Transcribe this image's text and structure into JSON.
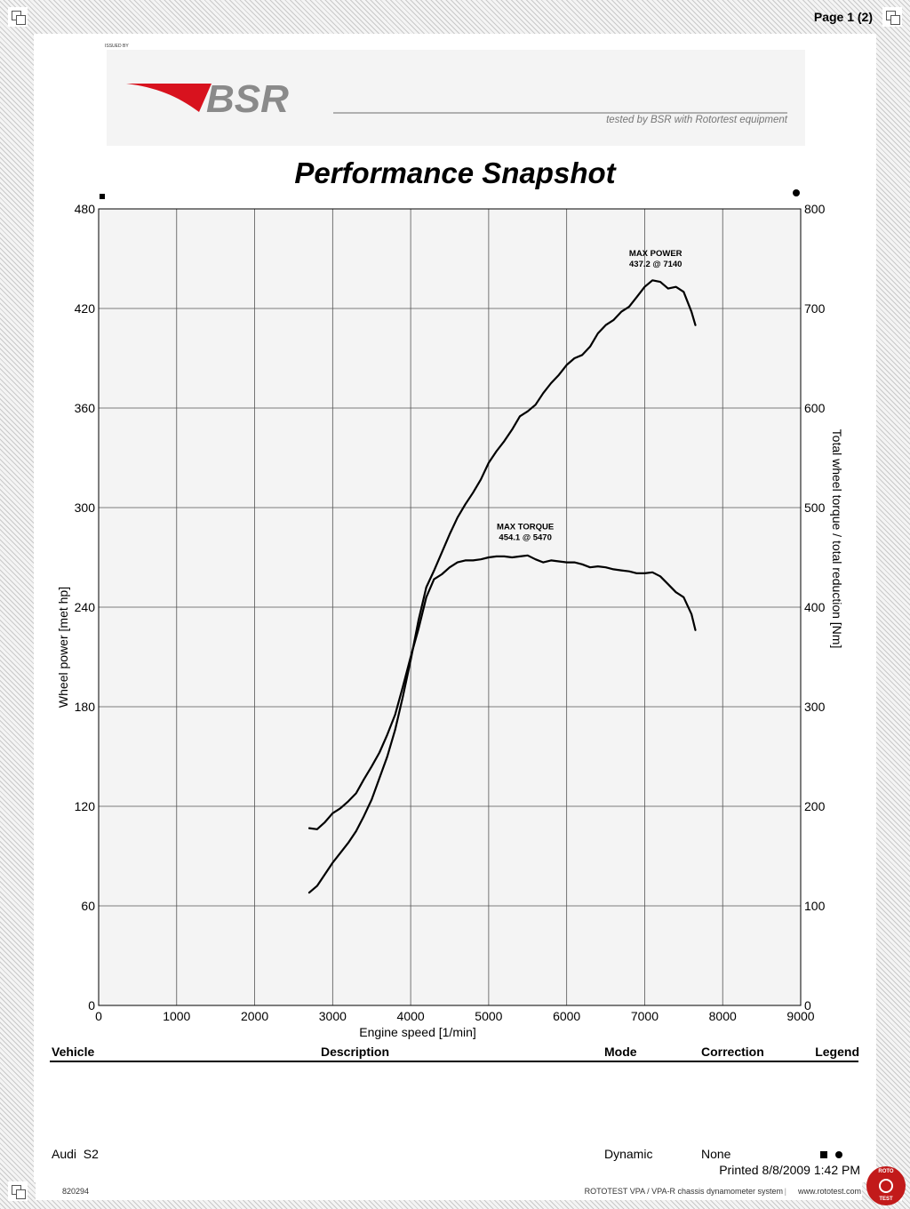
{
  "page": {
    "number": "Page 1 (2)",
    "issued_by": "ISSUED BY",
    "doc_id": "820294"
  },
  "branding": {
    "logo_text": "BSR",
    "tagline": "tested by BSR with Rotortest equipment",
    "logo_color": "#d8121e",
    "logo_gray": "#8a8a8a"
  },
  "chart_data": {
    "type": "line",
    "title": "Performance Snapshot",
    "xlabel": "Engine speed [1/min]",
    "ylabel_left": "Wheel power [met hp]",
    "ylabel_right": "Total wheel torque / total reduction [Nm]",
    "xlim": [
      0,
      9000
    ],
    "ylim_left": [
      0,
      480
    ],
    "ylim_right": [
      0,
      800
    ],
    "x_ticks": [
      "0",
      "1000",
      "2000",
      "3000",
      "4000",
      "5000",
      "6000",
      "7000",
      "8000",
      "9000"
    ],
    "y_left_ticks": [
      "0",
      "60",
      "120",
      "180",
      "240",
      "300",
      "360",
      "420",
      "480"
    ],
    "y_right_ticks": [
      "0",
      "100",
      "200",
      "300",
      "400",
      "500",
      "600",
      "700",
      "800"
    ],
    "grid": true,
    "series": [
      {
        "axis": "left",
        "color": "#000000",
        "x": [
          2700,
          2800,
          2900,
          3000,
          3100,
          3200,
          3300,
          3400,
          3500,
          3600,
          3700,
          3800,
          3900,
          4000,
          4100,
          4200,
          4300,
          4400,
          4500,
          4600,
          4700,
          4800,
          4900,
          5000,
          5100,
          5200,
          5300,
          5400,
          5500,
          5600,
          5700,
          5800,
          5900,
          6000,
          6100,
          6200,
          6300,
          6400,
          6500,
          6600,
          6700,
          6800,
          6900,
          7000,
          7100,
          7200,
          7300,
          7400,
          7500,
          7600,
          7650
        ],
        "y": [
          68,
          72,
          79,
          86,
          92,
          98,
          105,
          114,
          124,
          137,
          150,
          166,
          186,
          208,
          232,
          252,
          262,
          273,
          284,
          294,
          302,
          309,
          317,
          327,
          334,
          340,
          347,
          355,
          358,
          362,
          369,
          375,
          380,
          386,
          390,
          392,
          397,
          405,
          410,
          413,
          418,
          421,
          427,
          433,
          437,
          436,
          432,
          433,
          430,
          418,
          410
        ]
      },
      {
        "axis": "right",
        "color": "#000000",
        "x": [
          2700,
          2800,
          2900,
          3000,
          3100,
          3200,
          3300,
          3400,
          3500,
          3600,
          3700,
          3800,
          3900,
          4000,
          4100,
          4200,
          4300,
          4400,
          4500,
          4600,
          4700,
          4800,
          4900,
          5000,
          5100,
          5200,
          5300,
          5400,
          5500,
          5600,
          5700,
          5800,
          5900,
          6000,
          6100,
          6200,
          6300,
          6400,
          6500,
          6600,
          6700,
          6800,
          6900,
          7000,
          7100,
          7200,
          7300,
          7400,
          7500,
          7600,
          7650
        ],
        "y": [
          178,
          177,
          184,
          193,
          198,
          205,
          213,
          227,
          240,
          254,
          272,
          292,
          320,
          350,
          378,
          410,
          428,
          433,
          440,
          445,
          447,
          447,
          448,
          450,
          451,
          451,
          450,
          451,
          452,
          448,
          445,
          447,
          446,
          445,
          445,
          443,
          440,
          441,
          440,
          438,
          437,
          436,
          434,
          434,
          435,
          431,
          423,
          415,
          410,
          393,
          377
        ]
      }
    ],
    "annotations": [
      {
        "title": "MAX POWER",
        "value": "437.2 @ 7140",
        "x": 7140,
        "y": 437.2,
        "axis": "left"
      },
      {
        "title": "MAX TORQUE",
        "value": "454.1 @ 5470",
        "x": 5470,
        "y": 454.1,
        "axis": "right"
      }
    ]
  },
  "table": {
    "headers": [
      "Vehicle",
      "Description",
      "Mode",
      "Correction",
      "Legend"
    ],
    "row": {
      "vehicle": "Audi  S2",
      "description": "",
      "mode": "Dynamic",
      "correction": "None"
    }
  },
  "printed": "Printed 8/8/2009 1:42 PM",
  "footer": {
    "system": "ROTOTEST VPA / VPA-R chassis dynamometer system",
    "url": "www.rototest.com",
    "seal_top": "ROTO",
    "seal_bottom": "TEST"
  }
}
